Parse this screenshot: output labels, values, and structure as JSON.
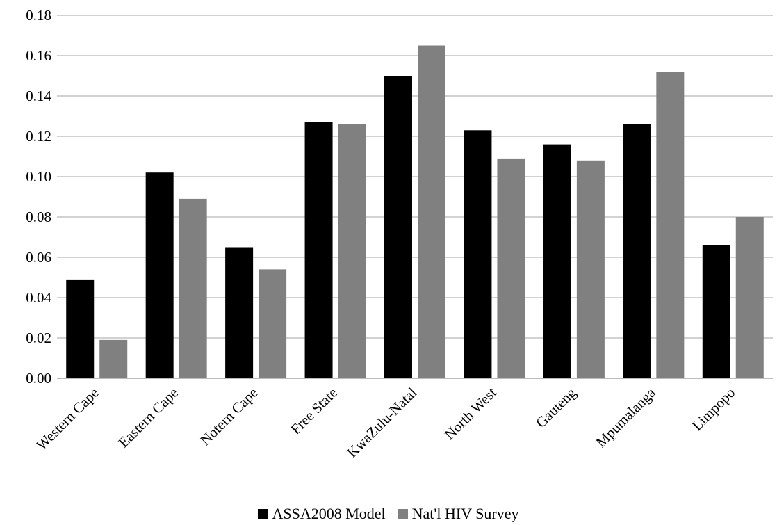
{
  "chart_data": {
    "type": "bar",
    "title": "",
    "xlabel": "",
    "ylabel": "",
    "ylim": [
      0,
      0.18
    ],
    "ytick_step": 0.02,
    "ytick_decimals": 2,
    "grid": true,
    "legend_position": "bottom",
    "categories": [
      "Western Cape",
      "Eastern Cape",
      "Notern Cape",
      "Free State",
      "KwaZulu-Natal",
      "North West",
      "Gauteng",
      "Mpumalanga",
      "Limpopo"
    ],
    "series": [
      {
        "name": "ASSA2008 Model",
        "color": "#000000",
        "values": [
          0.049,
          0.102,
          0.065,
          0.127,
          0.15,
          0.123,
          0.116,
          0.126,
          0.066
        ]
      },
      {
        "name": "Nat'l HIV Survey",
        "color": "#808080",
        "values": [
          0.019,
          0.089,
          0.054,
          0.126,
          0.165,
          0.109,
          0.108,
          0.152,
          0.08
        ]
      }
    ]
  }
}
